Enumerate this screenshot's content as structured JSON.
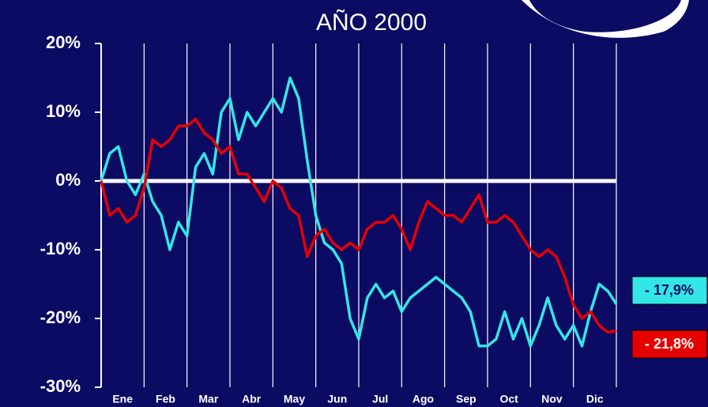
{
  "chart_data": {
    "type": "line",
    "title": "AÑO 2000",
    "categories": [
      "Ene",
      "Feb",
      "Mar",
      "Abr",
      "May",
      "Jun",
      "Jul",
      "Ago",
      "Sep",
      "Oct",
      "Nov",
      "Dic"
    ],
    "x": [
      0,
      0.2,
      0.4,
      0.6,
      0.8,
      1,
      1.2,
      1.4,
      1.6,
      1.8,
      2,
      2.2,
      2.4,
      2.6,
      2.8,
      3,
      3.2,
      3.4,
      3.6,
      3.8,
      4,
      4.2,
      4.4,
      4.6,
      4.8,
      5,
      5.2,
      5.4,
      5.6,
      5.8,
      6,
      6.2,
      6.4,
      6.6,
      6.8,
      7,
      7.2,
      7.4,
      7.6,
      7.8,
      8,
      8.2,
      8.4,
      8.6,
      8.8,
      9,
      9.2,
      9.4,
      9.6,
      9.8,
      10,
      10.2,
      10.4,
      10.6,
      10.8,
      11,
      11.2,
      11.4,
      11.6,
      11.8,
      12
    ],
    "series": [
      {
        "color": "#33e6e6",
        "values": [
          0,
          4,
          5,
          0,
          -2,
          1,
          -3,
          -5,
          -10,
          -6,
          -8,
          2,
          4,
          1,
          10,
          12,
          6,
          10,
          8,
          10,
          12,
          10,
          15,
          12,
          3,
          -5,
          -9,
          -10,
          -12,
          -20,
          -23,
          -17,
          -15,
          -17,
          -16,
          -19,
          -17,
          -16,
          -15,
          -14,
          -15,
          -16,
          -17,
          -19,
          -24,
          -24,
          -23,
          -19,
          -23,
          -20,
          -24,
          -21,
          -17,
          -21,
          -23,
          -21,
          -24,
          -19,
          -15,
          -16,
          -17.9
        ]
      },
      {
        "color": "#e60000",
        "values": [
          0,
          -5,
          -4,
          -6,
          -5,
          -1,
          6,
          5,
          6,
          8,
          8,
          9,
          7,
          6,
          4,
          5,
          1,
          1,
          -1,
          -3,
          0,
          -1,
          -4,
          -5,
          -11,
          -8,
          -7,
          -9,
          -10,
          -9,
          -10,
          -7,
          -6,
          -6,
          -5,
          -7,
          -10,
          -6,
          -3,
          -4,
          -5,
          -5,
          -6,
          -4,
          -2,
          -6,
          -6,
          -5,
          -6,
          -8,
          -10,
          -11,
          -10,
          -11,
          -14,
          -18,
          -20,
          -19,
          -21,
          -22,
          -21.8
        ]
      }
    ],
    "xlim": [
      0,
      12
    ],
    "xticks": [
      0,
      1,
      2,
      3,
      4,
      5,
      6,
      7,
      8,
      9,
      10,
      11,
      12
    ],
    "ylim": [
      -30,
      20
    ],
    "yticks": [
      {
        "value": -30,
        "label": "-30%"
      },
      {
        "value": -20,
        "label": "-20%"
      },
      {
        "value": -10,
        "label": "-10%"
      },
      {
        "value": 0,
        "label": "0%"
      },
      {
        "value": 10,
        "label": "10%"
      },
      {
        "value": 20,
        "label": "20%"
      }
    ],
    "annotations": [
      {
        "text": "- 17,9%",
        "color": "#33e6e6",
        "text_color": "#0b0b63"
      },
      {
        "text": "- 21,8%",
        "color": "#e60000",
        "text_color": "#ffffff"
      }
    ]
  }
}
